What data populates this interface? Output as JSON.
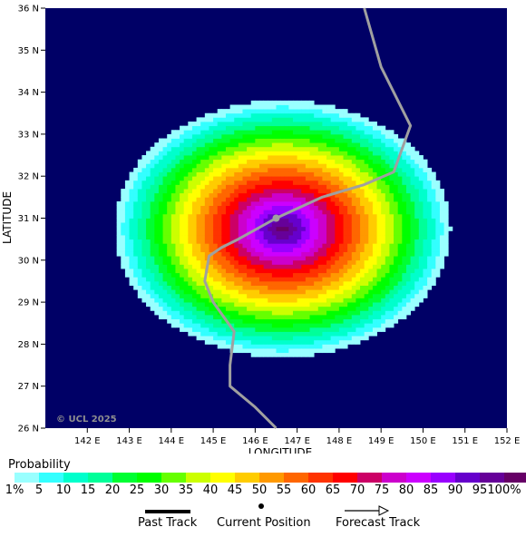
{
  "map": {
    "lon_range": [
      141,
      152
    ],
    "lat_range": [
      26,
      36
    ],
    "x_ticks": [
      "142 E",
      "143 E",
      "144 E",
      "145 E",
      "146 E",
      "147 E",
      "148 E",
      "149 E",
      "150 E",
      "151 E",
      "152 E"
    ],
    "y_ticks": [
      "36 N",
      "35 N",
      "34 N",
      "33 N",
      "32 N",
      "31 N",
      "30 N",
      "29 N",
      "28 N",
      "27 N",
      "26 N"
    ],
    "xlabel": "LONGITUDE",
    "ylabel": "LATITUDE",
    "credit": "© UCL 2025",
    "background_color": "#000066",
    "track_color": "#a0a0a0",
    "track": [
      [
        148.6,
        36.0
      ],
      [
        149.0,
        34.6
      ],
      [
        149.7,
        33.2
      ],
      [
        149.3,
        32.1
      ],
      [
        148.6,
        31.8
      ],
      [
        147.6,
        31.5
      ],
      [
        146.5,
        31.0
      ],
      [
        145.6,
        30.5
      ],
      [
        145.2,
        30.3
      ],
      [
        144.9,
        30.1
      ],
      [
        144.8,
        29.5
      ],
      [
        145.0,
        29.0
      ],
      [
        145.5,
        28.3
      ],
      [
        145.4,
        27.5
      ],
      [
        145.4,
        27.0
      ],
      [
        146.0,
        26.5
      ],
      [
        146.5,
        26.0
      ]
    ],
    "current_position": [
      146.5,
      31.0
    ],
    "probability_centre": [
      146.65,
      30.75
    ],
    "probability_radius_deg": [
      4.0,
      3.05
    ]
  },
  "legend": {
    "title": "Probability",
    "labels": [
      "1%",
      "5",
      "10",
      "15",
      "20",
      "25",
      "30",
      "35",
      "40",
      "45",
      "50",
      "55",
      "60",
      "65",
      "70",
      "75",
      "80",
      "85",
      "90",
      "95",
      "100%"
    ],
    "colors": [
      "#99ffff",
      "#33ffff",
      "#00ffcc",
      "#00ff99",
      "#00ff33",
      "#00ff00",
      "#66ff00",
      "#ccff00",
      "#ffff00",
      "#ffcc00",
      "#ff9900",
      "#ff6600",
      "#ff3300",
      "#ff0000",
      "#cc0066",
      "#cc00cc",
      "#cc00ff",
      "#9900ff",
      "#6600cc",
      "#660099",
      "#660066"
    ]
  },
  "keys": {
    "past_track": "Past Track",
    "current_position": "Current Position",
    "forecast_track": "Forecast Track"
  }
}
